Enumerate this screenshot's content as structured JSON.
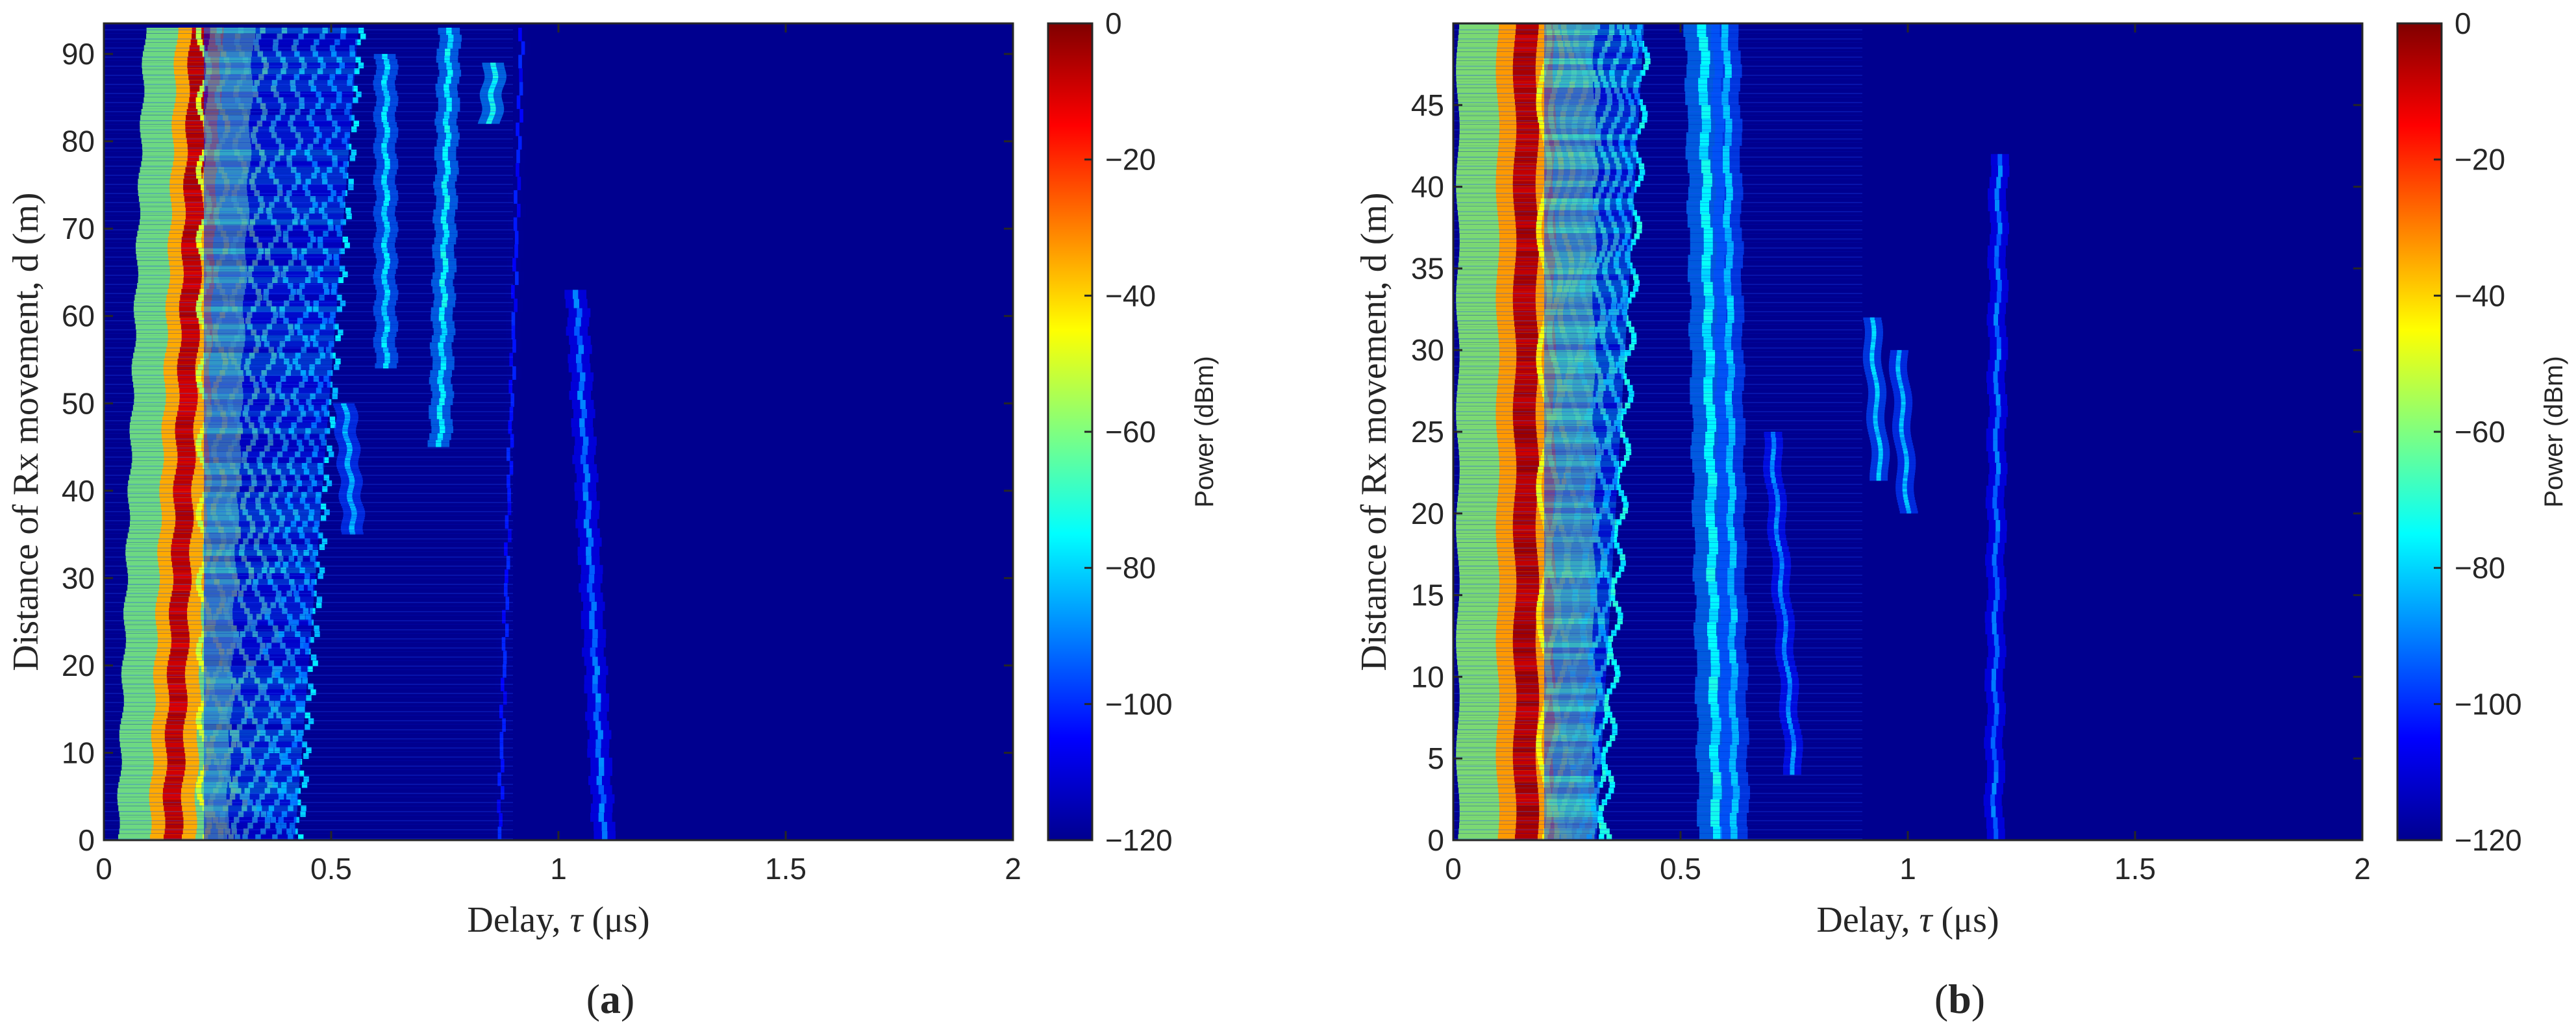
{
  "chart_data": [
    {
      "type": "heatmap",
      "panel_label": {
        "open": "(",
        "letter": "a",
        "close": ")"
      },
      "xlabel": {
        "prefix": "Delay, ",
        "symbol": "τ",
        "unit": " (μs)"
      },
      "ylabel": "Distance of Rx movement, d (m)",
      "xlim": [
        0,
        2
      ],
      "ylim": [
        0,
        93.5
      ],
      "xticks": [
        "0",
        "0.5",
        "1",
        "1.5",
        "2"
      ],
      "yticks": [
        "0",
        "10",
        "20",
        "30",
        "40",
        "50",
        "60",
        "70",
        "80",
        "90"
      ],
      "colorbar": {
        "label": "Power (dBm)",
        "range": [
          -120,
          0
        ],
        "ticks": [
          "−120",
          "−100",
          "−80",
          "−60",
          "−40",
          "−20",
          "0"
        ]
      },
      "paths": [
        {
          "delay": [
            0.15,
            0.21
          ],
          "d": [
            0,
            93
          ],
          "peak_dbm": -5,
          "width_us": 0.02,
          "kind": "main"
        },
        {
          "delay": [
            0.22,
            0.56
          ],
          "d": [
            0,
            93
          ],
          "peak_dbm": -45,
          "width_us": 0.35,
          "kind": "cluster"
        },
        {
          "delay": [
            0.62,
            0.62
          ],
          "d": [
            54,
            90
          ],
          "peak_dbm": -75,
          "width_us": 0.012,
          "kind": "track"
        },
        {
          "delay": [
            0.74,
            0.76
          ],
          "d": [
            45,
            93
          ],
          "peak_dbm": -72,
          "width_us": 0.012,
          "kind": "track"
        },
        {
          "delay": [
            0.85,
            0.86
          ],
          "d": [
            82,
            89
          ],
          "peak_dbm": -70,
          "width_us": 0.012,
          "kind": "track"
        },
        {
          "delay": [
            0.87,
            0.92
          ],
          "d": [
            0,
            93
          ],
          "peak_dbm": -100,
          "width_us": 0.008,
          "kind": "track"
        },
        {
          "delay": [
            1.1,
            1.04
          ],
          "d": [
            0,
            63
          ],
          "peak_dbm": -88,
          "width_us": 0.012,
          "kind": "track"
        },
        {
          "delay": [
            0.55,
            0.53
          ],
          "d": [
            35,
            50
          ],
          "peak_dbm": -80,
          "width_us": 0.012,
          "kind": "track"
        }
      ]
    },
    {
      "type": "heatmap",
      "panel_label": {
        "open": "(",
        "letter": "b",
        "close": ")"
      },
      "xlabel": {
        "prefix": "Delay, ",
        "symbol": "τ",
        "unit": " (μs)"
      },
      "ylabel": "Distance of Rx movement, d (m)",
      "xlim": [
        0,
        2
      ],
      "ylim": [
        0,
        50
      ],
      "xticks": [
        "0",
        "0.5",
        "1",
        "1.5",
        "2"
      ],
      "yticks": [
        "0",
        "5",
        "10",
        "15",
        "20",
        "25",
        "30",
        "35",
        "40",
        "45"
      ],
      "colorbar": {
        "label": "Power (dBm)",
        "range": [
          -120,
          0
        ],
        "ticks": [
          "−120",
          "−100",
          "−80",
          "−60",
          "−40",
          "−20",
          "0"
        ]
      },
      "paths": [
        {
          "delay": [
            0.16,
            0.16
          ],
          "d": [
            0,
            50
          ],
          "peak_dbm": -3,
          "width_us": 0.025,
          "kind": "main"
        },
        {
          "delay": [
            0.2,
            0.42
          ],
          "d": [
            0,
            50
          ],
          "peak_dbm": -40,
          "width_us": 0.22,
          "kind": "cluster"
        },
        {
          "delay": [
            0.58,
            0.55
          ],
          "d": [
            0,
            50
          ],
          "peak_dbm": -72,
          "width_us": 0.02,
          "kind": "track"
        },
        {
          "delay": [
            0.62,
            0.6
          ],
          "d": [
            0,
            50
          ],
          "peak_dbm": -78,
          "width_us": 0.015,
          "kind": "track"
        },
        {
          "delay": [
            0.75,
            0.7
          ],
          "d": [
            4,
            25
          ],
          "peak_dbm": -85,
          "width_us": 0.01,
          "kind": "track"
        },
        {
          "delay": [
            0.94,
            0.92
          ],
          "d": [
            22,
            32
          ],
          "peak_dbm": -78,
          "width_us": 0.01,
          "kind": "track"
        },
        {
          "delay": [
            1.0,
            0.98
          ],
          "d": [
            20,
            30
          ],
          "peak_dbm": -80,
          "width_us": 0.01,
          "kind": "track"
        },
        {
          "delay": [
            1.19,
            1.2
          ],
          "d": [
            0,
            42
          ],
          "peak_dbm": -88,
          "width_us": 0.01,
          "kind": "track"
        }
      ]
    }
  ]
}
